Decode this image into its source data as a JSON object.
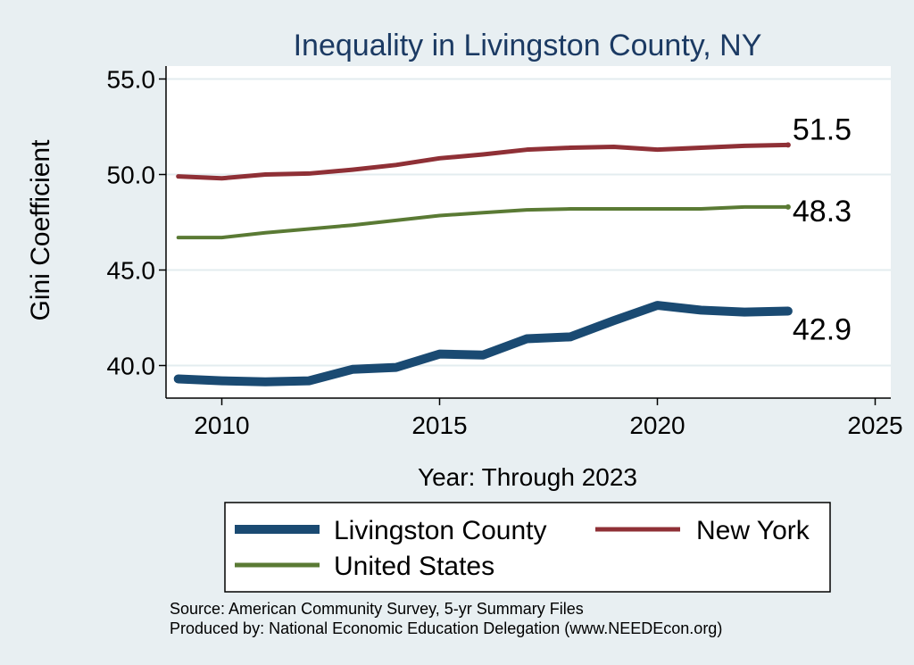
{
  "chart_data": {
    "type": "line",
    "title": "Inequality in Livingston County, NY",
    "xlabel": "Year: Through 2023",
    "ylabel": "Gini Coefficient",
    "xlim": [
      2009,
      2025
    ],
    "ylim": [
      39,
      55.5
    ],
    "x_ticks": [
      2010,
      2015,
      2020,
      2025
    ],
    "y_ticks": [
      40.0,
      45.0,
      50.0,
      55.0
    ],
    "y_tick_labels": [
      "40.0",
      "45.0",
      "50.0",
      "55.0"
    ],
    "grid": true,
    "x": [
      2009,
      2010,
      2011,
      2012,
      2013,
      2014,
      2015,
      2016,
      2017,
      2018,
      2019,
      2020,
      2021,
      2022,
      2023
    ],
    "series": [
      {
        "name": "Livingston County",
        "color": "#1a4a72",
        "values": [
          39.3,
          39.2,
          39.15,
          39.2,
          39.8,
          39.9,
          40.6,
          40.55,
          41.4,
          41.5,
          42.35,
          43.15,
          42.9,
          42.8,
          42.85
        ],
        "end_label": "42.9"
      },
      {
        "name": "New York",
        "color": "#8f3036",
        "values": [
          49.9,
          49.8,
          50.0,
          50.05,
          50.25,
          50.5,
          50.85,
          51.05,
          51.3,
          51.4,
          51.45,
          51.3,
          51.4,
          51.5,
          51.55
        ],
        "end_label": "51.5"
      },
      {
        "name": "United States",
        "color": "#5a7a34",
        "values": [
          46.7,
          46.7,
          46.95,
          47.15,
          47.35,
          47.6,
          47.85,
          48.0,
          48.15,
          48.2,
          48.2,
          48.2,
          48.2,
          48.3,
          48.3
        ],
        "end_label": "48.3"
      }
    ],
    "legend": [
      "Livingston County",
      "New York",
      "United States"
    ],
    "legend_position": "bottom"
  },
  "footer": {
    "source": "Source: American Community Survey, 5-yr Summary Files",
    "produced": "Produced by: National Economic Education Delegation (www.NEEDEcon.org)"
  }
}
